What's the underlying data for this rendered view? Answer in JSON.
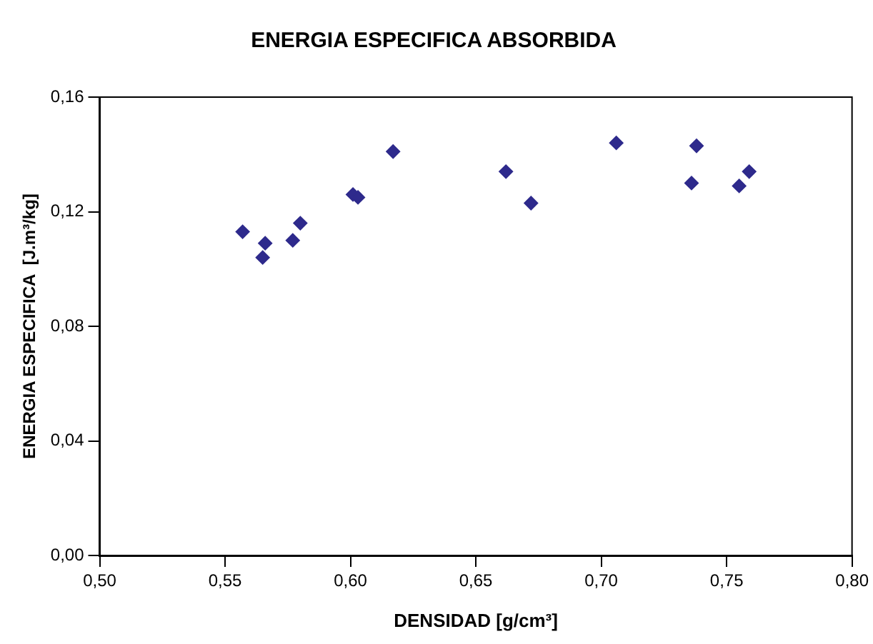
{
  "chart_data": {
    "type": "scatter",
    "title": "ENERGIA ESPECIFICA ABSORBIDA",
    "xlabel": "DENSIDAD [g/cm³]",
    "ylabel": "ENERGIA ESPECIFICA  [J.m³/kg]",
    "x": [
      0.557,
      0.566,
      0.565,
      0.577,
      0.58,
      0.601,
      0.603,
      0.617,
      0.662,
      0.672,
      0.706,
      0.738,
      0.736,
      0.755,
      0.759
    ],
    "series": [
      {
        "color": "#2e2a8c",
        "values": [
          0.113,
          0.109,
          0.104,
          0.11,
          0.116,
          0.126,
          0.125,
          0.141,
          0.134,
          0.123,
          0.144,
          0.143,
          0.13,
          0.129,
          0.134
        ]
      }
    ],
    "xlim": [
      0.5,
      0.8
    ],
    "xticks": [
      {
        "value": 0.5,
        "label": "0,50"
      },
      {
        "value": 0.55,
        "label": "0,55"
      },
      {
        "value": 0.6,
        "label": "0,60"
      },
      {
        "value": 0.65,
        "label": "0,65"
      },
      {
        "value": 0.7,
        "label": "0,70"
      },
      {
        "value": 0.75,
        "label": "0,75"
      },
      {
        "value": 0.8,
        "label": "0,80"
      }
    ],
    "ylim": [
      0,
      0.16
    ],
    "yticks": [
      {
        "value": 0,
        "label": "0,00"
      },
      {
        "value": 0.04,
        "label": "0,04"
      },
      {
        "value": 0.08,
        "label": "0,08"
      },
      {
        "value": 0.12,
        "label": "0,12"
      },
      {
        "value": 0.16,
        "label": "0,16"
      }
    ],
    "marker": "diamond",
    "grid": false,
    "legend": false
  }
}
